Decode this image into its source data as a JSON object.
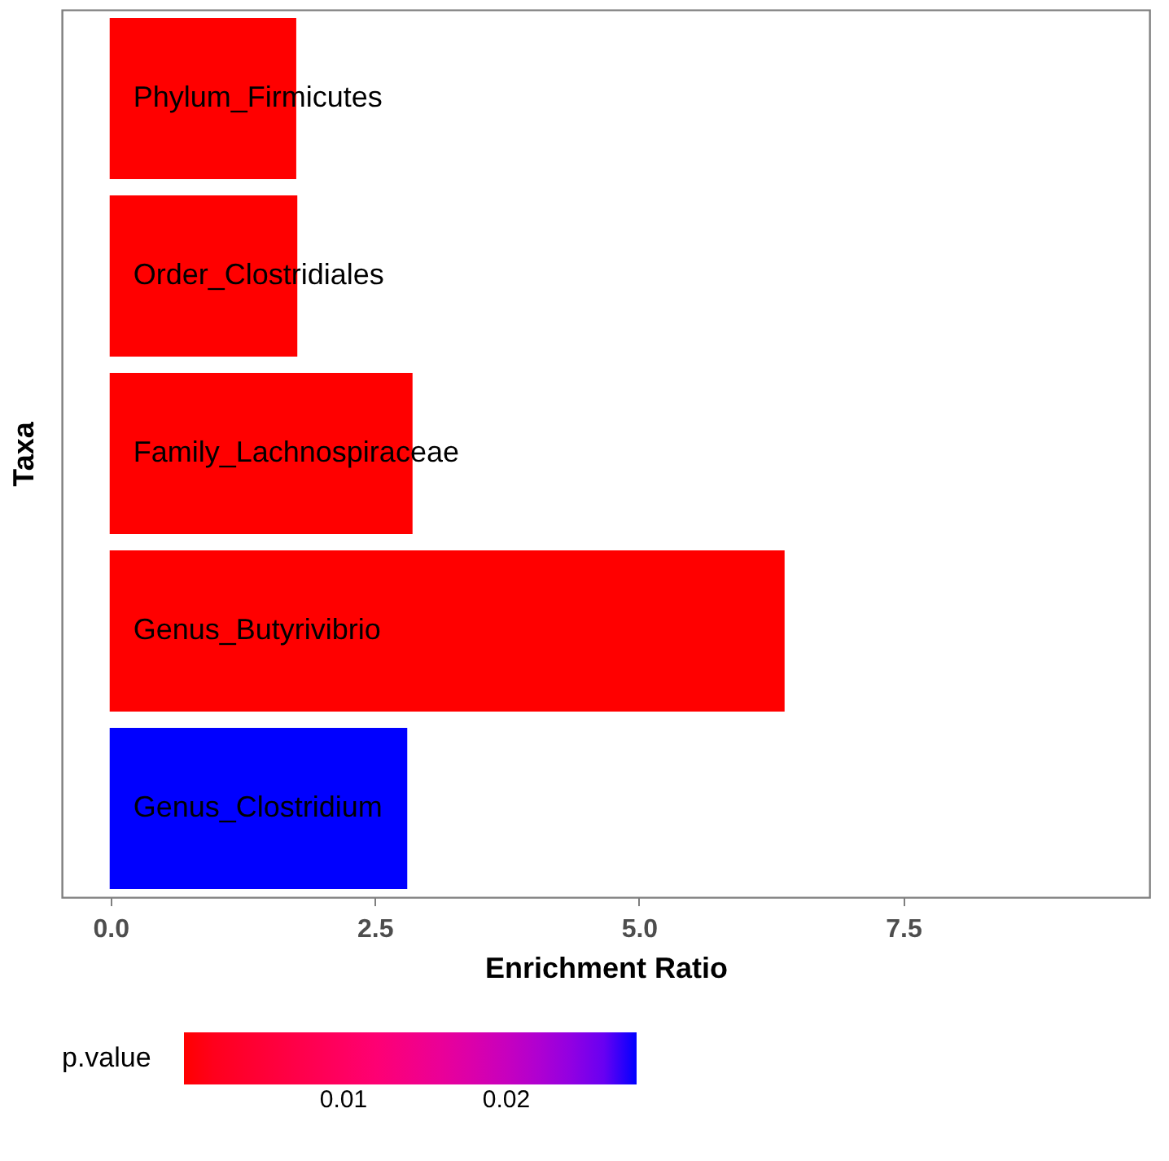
{
  "chart_data": {
    "type": "bar",
    "orientation": "horizontal",
    "xlabel": "Enrichment Ratio",
    "ylabel": "Taxa",
    "legend_title": "p.value",
    "categories": [
      "Phylum_Firmicutes",
      "Order_Clostridiales",
      "Family_Lachnospiraceae",
      "Genus_Butyrivibrio",
      "Genus_Clostridium"
    ],
    "values": [
      1.75,
      1.76,
      2.85,
      6.37,
      2.8
    ],
    "cvalues": [
      0.0002,
      0.0002,
      0.0002,
      0.0002,
      0.028
    ],
    "clim": [
      0.0002,
      0.028
    ],
    "cticks": [
      0.01,
      0.02
    ],
    "colors": [
      "#ff0000",
      "#ff0000",
      "#ff0000",
      "#ff0000",
      "#0000ff"
    ],
    "xlim": [
      -0.46,
      9.83
    ],
    "xticks": [
      {
        "value": 0,
        "label": "0.0"
      },
      {
        "value": 2.5,
        "label": "2.5"
      },
      {
        "value": 5,
        "label": "5.0"
      },
      {
        "value": 7.5,
        "label": "7.5"
      }
    ],
    "tick_labels": "x",
    "grid": false
  }
}
